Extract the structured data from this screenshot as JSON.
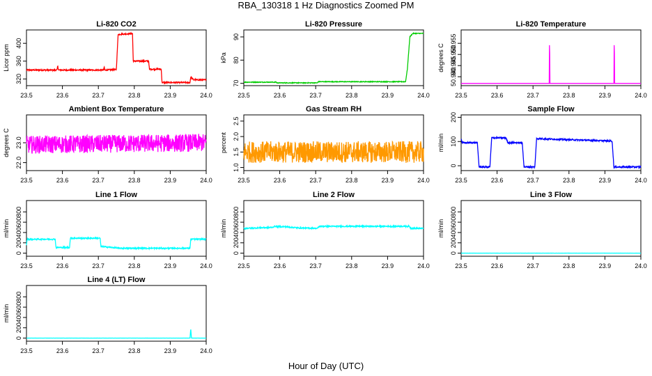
{
  "figure": {
    "title": "RBA_130318  1 Hz Diagnostics Zoomed PM",
    "xlabel": "Hour of Day (UTC)"
  },
  "chart_data": [
    {
      "id": "co2",
      "type": "line",
      "title": "Li-820 CO2",
      "xlabel": "",
      "ylabel": "Licor ppm",
      "xlim": [
        23.5,
        24.0
      ],
      "ylim": [
        305,
        430
      ],
      "xticks": [
        "23.5",
        "23.6",
        "23.7",
        "23.8",
        "23.9",
        "24.0"
      ],
      "yticks": [
        "320",
        "360",
        "400"
      ],
      "color": "#ff0000",
      "noise": 1.5,
      "series": [
        {
          "values": [
            [
              23.5,
              340
            ],
            [
              23.585,
              340
            ],
            [
              23.587,
              350
            ],
            [
              23.589,
              340
            ],
            [
              23.715,
              340
            ],
            [
              23.716,
              348
            ],
            [
              23.718,
              340
            ],
            [
              23.75,
              341
            ],
            [
              23.755,
              420
            ],
            [
              23.795,
              422
            ],
            [
              23.797,
              360
            ],
            [
              23.84,
              360
            ],
            [
              23.842,
              342
            ],
            [
              23.875,
              342
            ],
            [
              23.877,
              312
            ],
            [
              23.955,
              312
            ],
            [
              23.957,
              325
            ],
            [
              23.965,
              318
            ],
            [
              24.0,
              318
            ]
          ]
        }
      ]
    },
    {
      "id": "pressure",
      "type": "line",
      "title": "Li-820 Pressure",
      "xlabel": "",
      "ylabel": "kPa",
      "xlim": [
        23.5,
        24.0
      ],
      "ylim": [
        69,
        93
      ],
      "xticks": [
        "23.5",
        "23.6",
        "23.7",
        "23.8",
        "23.9",
        "24.0"
      ],
      "yticks": [
        "70",
        "80",
        "90"
      ],
      "color": "#00cc00",
      "noise": 0.15,
      "series": [
        {
          "values": [
            [
              23.5,
              70.5
            ],
            [
              23.59,
              70.5
            ],
            [
              23.592,
              70.2
            ],
            [
              23.705,
              70.2
            ],
            [
              23.707,
              70.7
            ],
            [
              23.95,
              70.7
            ],
            [
              23.955,
              76
            ],
            [
              23.962,
              90
            ],
            [
              23.97,
              91.5
            ],
            [
              24.0,
              91.5
            ]
          ]
        }
      ]
    },
    {
      "id": "temperature",
      "type": "line",
      "title": "Li-820 Temperature",
      "xlabel": "",
      "ylabel": "degrees C",
      "xlim": [
        23.5,
        24.0
      ],
      "ylim": [
        50.936,
        50.961
      ],
      "xticks": [
        "23.5",
        "23.6",
        "23.7",
        "23.8",
        "23.9",
        "24.0"
      ],
      "yticks": [
        "50.940",
        "50.945",
        "50.950",
        "50.955"
      ],
      "color": "#ff00ff",
      "noise": 0,
      "series": [
        {
          "values": [
            [
              23.5,
              50.937
            ],
            [
              23.745,
              50.937
            ],
            [
              23.746,
              50.961
            ],
            [
              23.747,
              50.937
            ],
            [
              23.925,
              50.937
            ],
            [
              23.926,
              50.961
            ],
            [
              23.927,
              50.937
            ],
            [
              24.0,
              50.937
            ]
          ]
        }
      ]
    },
    {
      "id": "ambient",
      "type": "line",
      "title": "Ambient Box Temperature",
      "xlabel": "",
      "ylabel": "degrees C",
      "xlim": [
        23.5,
        24.0
      ],
      "ylim": [
        21.6,
        24.4
      ],
      "xticks": [
        "23.5",
        "23.6",
        "23.7",
        "23.8",
        "23.9",
        "24.0"
      ],
      "yticks": [
        "22.0",
        "23.0"
      ],
      "color": "#ff00ff",
      "noise": 0.45,
      "series": [
        {
          "values": [
            [
              23.5,
              22.9
            ],
            [
              24.0,
              23.0
            ]
          ]
        }
      ]
    },
    {
      "id": "rh",
      "type": "line",
      "title": "Gas Stream RH",
      "xlabel": "",
      "ylabel": "percent",
      "xlim": [
        23.5,
        24.0
      ],
      "ylim": [
        0.9,
        2.7
      ],
      "xticks": [
        "23.5",
        "23.6",
        "23.7",
        "23.8",
        "23.9",
        "24.0"
      ],
      "yticks": [
        "1.0",
        "1.5",
        "2.0",
        "2.5"
      ],
      "color": "#ff9900",
      "noise": 0.35,
      "series": [
        {
          "values": [
            [
              23.5,
              1.5
            ],
            [
              24.0,
              1.5
            ]
          ]
        }
      ]
    },
    {
      "id": "sample",
      "type": "line",
      "title": "Sample Flow",
      "xlabel": "",
      "ylabel": "ml/min",
      "xlim": [
        23.5,
        24.0
      ],
      "ylim": [
        -20,
        210
      ],
      "xticks": [
        "23.5",
        "23.6",
        "23.7",
        "23.8",
        "23.9",
        "24.0"
      ],
      "yticks": [
        "0",
        "100",
        "200"
      ],
      "color": "#0000ff",
      "noise": 3,
      "series": [
        {
          "values": [
            [
              23.5,
              112
            ],
            [
              23.503,
              95
            ],
            [
              23.545,
              95
            ],
            [
              23.55,
              -5
            ],
            [
              23.58,
              -5
            ],
            [
              23.585,
              115
            ],
            [
              23.625,
              115
            ],
            [
              23.63,
              95
            ],
            [
              23.67,
              95
            ],
            [
              23.675,
              -5
            ],
            [
              23.705,
              -5
            ],
            [
              23.71,
              112
            ],
            [
              23.75,
              110
            ],
            [
              23.92,
              102
            ],
            [
              23.925,
              -5
            ],
            [
              24.0,
              -5
            ]
          ]
        }
      ]
    },
    {
      "id": "line1",
      "type": "line",
      "title": "Line 1 Flow",
      "xlabel": "",
      "ylabel": "ml/min",
      "xlim": [
        23.5,
        24.0
      ],
      "ylim": [
        -60,
        1020
      ],
      "xticks": [
        "23.5",
        "23.6",
        "23.7",
        "23.8",
        "23.9",
        "24.0"
      ],
      "yticks": [
        "0",
        "200",
        "400",
        "600",
        "800"
      ],
      "color": "#00ffff",
      "noise": 12,
      "series": [
        {
          "values": [
            [
              23.5,
              160
            ],
            [
              23.502,
              270
            ],
            [
              23.58,
              270
            ],
            [
              23.582,
              110
            ],
            [
              23.62,
              110
            ],
            [
              23.622,
              290
            ],
            [
              23.705,
              290
            ],
            [
              23.707,
              130
            ],
            [
              23.76,
              95
            ],
            [
              23.955,
              95
            ],
            [
              23.957,
              270
            ],
            [
              24.0,
              270
            ]
          ]
        }
      ]
    },
    {
      "id": "line2",
      "type": "line",
      "title": "Line 2 Flow",
      "xlabel": "",
      "ylabel": "ml/min",
      "xlim": [
        23.5,
        24.0
      ],
      "ylim": [
        -60,
        1020
      ],
      "xticks": [
        "23.5",
        "23.6",
        "23.7",
        "23.8",
        "23.9",
        "24.0"
      ],
      "yticks": [
        "0",
        "200",
        "400",
        "600",
        "800"
      ],
      "color": "#00ffff",
      "noise": 12,
      "series": [
        {
          "values": [
            [
              23.5,
              480
            ],
            [
              23.58,
              500
            ],
            [
              23.585,
              520
            ],
            [
              23.62,
              510
            ],
            [
              23.65,
              490
            ],
            [
              23.705,
              480
            ],
            [
              23.71,
              520
            ],
            [
              23.96,
              520
            ],
            [
              23.965,
              480
            ],
            [
              24.0,
              480
            ]
          ]
        }
      ]
    },
    {
      "id": "line3",
      "type": "line",
      "title": "Line 3 Flow",
      "xlabel": "",
      "ylabel": "ml/min",
      "xlim": [
        23.5,
        24.0
      ],
      "ylim": [
        -60,
        1020
      ],
      "xticks": [
        "23.5",
        "23.6",
        "23.7",
        "23.8",
        "23.9",
        "24.0"
      ],
      "yticks": [
        "0",
        "200",
        "400",
        "600",
        "800"
      ],
      "color": "#00ffff",
      "noise": 1,
      "series": [
        {
          "values": [
            [
              23.5,
              0
            ],
            [
              24.0,
              0
            ]
          ]
        }
      ]
    },
    {
      "id": "line4",
      "type": "line",
      "title": "Line 4 (LT) Flow",
      "xlabel": "",
      "ylabel": "ml/min",
      "xlim": [
        23.5,
        24.0
      ],
      "ylim": [
        -60,
        1020
      ],
      "xticks": [
        "23.5",
        "23.6",
        "23.7",
        "23.8",
        "23.9",
        "24.0"
      ],
      "yticks": [
        "0",
        "200",
        "400",
        "600",
        "800"
      ],
      "color": "#00ffff",
      "noise": 1,
      "series": [
        {
          "values": [
            [
              23.5,
              0
            ],
            [
              23.955,
              0
            ],
            [
              23.957,
              180
            ],
            [
              23.959,
              0
            ],
            [
              24.0,
              0
            ]
          ]
        }
      ]
    }
  ]
}
